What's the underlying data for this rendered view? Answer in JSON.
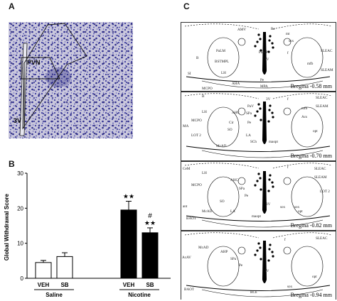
{
  "panel_labels": {
    "a": "A",
    "b": "B",
    "c": "C"
  },
  "panel_a": {
    "pvn_label": "PVN",
    "ventricle_label": "3V"
  },
  "chart_data": {
    "type": "bar",
    "ylabel": "Global Withdrawal Score",
    "ylim": [
      0,
      30
    ],
    "yticks": [
      0,
      10,
      20,
      30
    ],
    "groups": [
      "Saline",
      "Nicotine"
    ],
    "categories": [
      "VEH",
      "SB",
      "VEH",
      "SB"
    ],
    "group_of": [
      0,
      0,
      1,
      1
    ],
    "values": [
      4.5,
      6.2,
      19.5,
      13.0
    ],
    "errors": [
      0.6,
      1.1,
      2.5,
      1.4
    ],
    "fills": [
      "#ffffff",
      "#ffffff",
      "#000000",
      "#000000"
    ],
    "annotations": [
      "",
      "",
      "★★",
      "★★"
    ],
    "annotations_top": [
      "",
      "",
      "",
      "#"
    ]
  },
  "panel_c": {
    "sections": [
      {
        "bregma": "Bregma -0.58 mm",
        "labels": [
          "AMV",
          "Re",
          "sox",
          "PaLM",
          "B",
          "PaMP",
          "SI",
          "BSTMPL",
          "LH",
          "AHA",
          "Pe",
          "MPA",
          "f",
          "mfb",
          "SLEAC",
          "SLEAM",
          "3V",
          "LA",
          "AAV",
          "SO",
          "LOT 2",
          "MCPO",
          "opt",
          "SChVL",
          "SChDM",
          "maopt",
          "mt"
        ]
      },
      {
        "bregma": "Bregma -0.70 mm",
        "labels": [
          "B",
          "MCPO",
          "AHC",
          "PaV",
          "SPa",
          "Cir",
          "Pe",
          "LA",
          "SO",
          "SCh",
          "maopt",
          "mfb",
          "Acs",
          "SLEAC",
          "SLEAM",
          "opt",
          "McAD",
          "LOT 2",
          "MA",
          "LH",
          "3V",
          "f"
        ]
      },
      {
        "bregma": "Bregma -0.82 mm",
        "labels": [
          "CeM",
          "LH",
          "MCPO",
          "AHC",
          "SPa",
          "Pe",
          "3V",
          "LA",
          "SO",
          "maopt",
          "McAD",
          "SLEAC",
          "SLEAM",
          "LOT 2",
          "sox",
          "f",
          "opt",
          "BAOT",
          "ant",
          "sox"
        ]
      },
      {
        "bregma": "Bregma -0.94 mm",
        "labels": [
          "McAD",
          "AcAV",
          "AHP",
          "SPa",
          "Pe",
          "3V",
          "RCh",
          "BAOT",
          "f",
          "sox",
          "SLEAC",
          "opt"
        ]
      }
    ]
  }
}
